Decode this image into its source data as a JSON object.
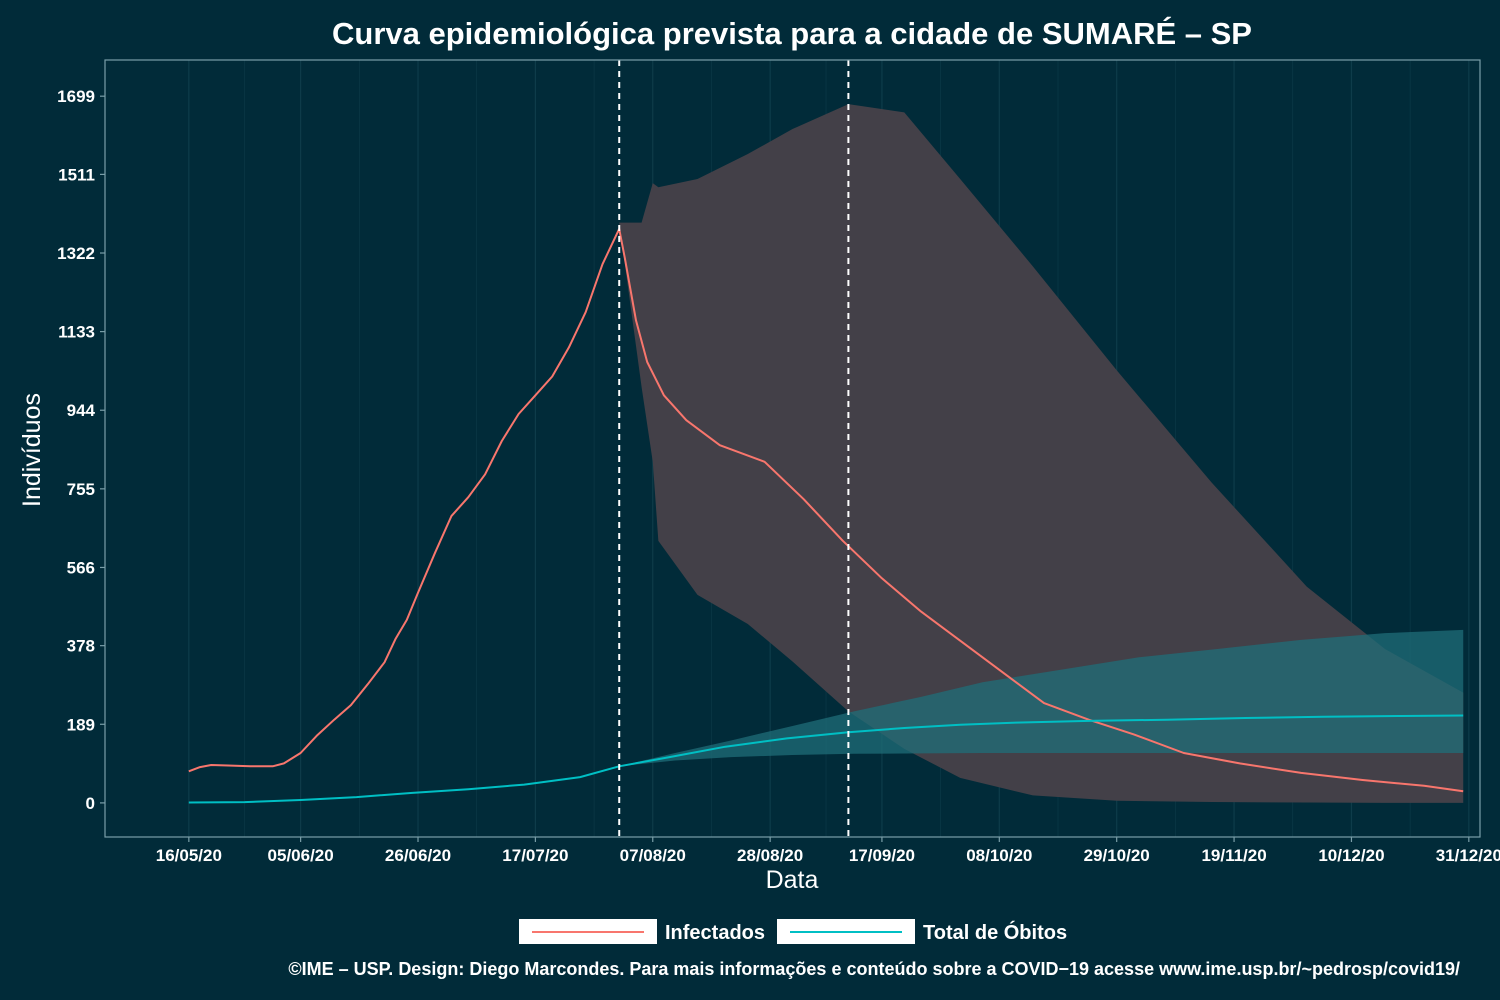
{
  "chart_data": {
    "type": "line",
    "title": "Curva epidemiológica prevista para a cidade de SUMARÉ – SP",
    "xlabel": "Data",
    "ylabel": "Indivíduos",
    "x_range": [
      "2020-05-01",
      "2021-01-02"
    ],
    "ylim": [
      -82,
      1786
    ],
    "y_ticks": [
      0,
      189,
      378,
      566,
      755,
      944,
      1133,
      1322,
      1511,
      1699
    ],
    "x_ticks": [
      {
        "date": "2020-05-16",
        "label": "16/05/20"
      },
      {
        "date": "2020-06-05",
        "label": "05/06/20"
      },
      {
        "date": "2020-06-26",
        "label": "26/06/20"
      },
      {
        "date": "2020-07-17",
        "label": "17/07/20"
      },
      {
        "date": "2020-08-07",
        "label": "07/08/20"
      },
      {
        "date": "2020-08-28",
        "label": "28/08/20"
      },
      {
        "date": "2020-09-17",
        "label": "17/09/20"
      },
      {
        "date": "2020-10-08",
        "label": "08/10/20"
      },
      {
        "date": "2020-10-29",
        "label": "29/10/20"
      },
      {
        "date": "2020-11-19",
        "label": "19/11/20"
      },
      {
        "date": "2020-12-10",
        "label": "10/12/20"
      },
      {
        "date": "2020-12-31",
        "label": "31/12/20"
      }
    ],
    "vlines": [
      "2020-08-01",
      "2020-09-11"
    ],
    "grid": true,
    "legend_position": "bottom",
    "series": [
      {
        "name": "Infectados",
        "color": "#f8766d",
        "points": [
          [
            "2020-05-16",
            76
          ],
          [
            "2020-05-18",
            86
          ],
          [
            "2020-05-20",
            91
          ],
          [
            "2020-05-23",
            90
          ],
          [
            "2020-05-27",
            88
          ],
          [
            "2020-05-31",
            88
          ],
          [
            "2020-06-02",
            95
          ],
          [
            "2020-06-05",
            120
          ],
          [
            "2020-06-08",
            163
          ],
          [
            "2020-06-11",
            200
          ],
          [
            "2020-06-14",
            235
          ],
          [
            "2020-06-17",
            285
          ],
          [
            "2020-06-20",
            338
          ],
          [
            "2020-06-22",
            395
          ],
          [
            "2020-06-24",
            440
          ],
          [
            "2020-06-26",
            505
          ],
          [
            "2020-06-29",
            600
          ],
          [
            "2020-07-02",
            690
          ],
          [
            "2020-07-05",
            735
          ],
          [
            "2020-07-08",
            790
          ],
          [
            "2020-07-11",
            870
          ],
          [
            "2020-07-14",
            935
          ],
          [
            "2020-07-17",
            980
          ],
          [
            "2020-07-20",
            1025
          ],
          [
            "2020-07-23",
            1095
          ],
          [
            "2020-07-26",
            1180
          ],
          [
            "2020-07-29",
            1295
          ],
          [
            "2020-08-01",
            1380
          ],
          [
            "2020-08-02",
            1310
          ],
          [
            "2020-08-04",
            1160
          ],
          [
            "2020-08-06",
            1060
          ],
          [
            "2020-08-09",
            980
          ],
          [
            "2020-08-13",
            920
          ],
          [
            "2020-08-19",
            860
          ],
          [
            "2020-08-27",
            820
          ],
          [
            "2020-09-03",
            730
          ],
          [
            "2020-09-10",
            630
          ],
          [
            "2020-09-17",
            540
          ],
          [
            "2020-09-24",
            460
          ],
          [
            "2020-10-01",
            390
          ],
          [
            "2020-10-08",
            320
          ],
          [
            "2020-10-16",
            240
          ],
          [
            "2020-10-24",
            200
          ],
          [
            "2020-11-01",
            165
          ],
          [
            "2020-11-10",
            120
          ],
          [
            "2020-11-20",
            95
          ],
          [
            "2020-12-01",
            72
          ],
          [
            "2020-12-12",
            55
          ],
          [
            "2020-12-23",
            41
          ],
          [
            "2020-12-30",
            28
          ]
        ],
        "band": [
          [
            "2020-08-01",
            1395,
            1395
          ],
          [
            "2020-08-05",
            1395,
            1000
          ],
          [
            "2020-08-07",
            1490,
            820
          ],
          [
            "2020-08-08",
            1480,
            630
          ],
          [
            "2020-08-15",
            1500,
            500
          ],
          [
            "2020-08-24",
            1560,
            430
          ],
          [
            "2020-09-01",
            1620,
            340
          ],
          [
            "2020-09-11",
            1680,
            220
          ],
          [
            "2020-09-21",
            1660,
            130
          ],
          [
            "2020-10-01",
            1500,
            60
          ],
          [
            "2020-10-14",
            1290,
            18
          ],
          [
            "2020-10-29",
            1040,
            5
          ],
          [
            "2020-11-15",
            770,
            2
          ],
          [
            "2020-12-02",
            520,
            1
          ],
          [
            "2020-12-16",
            370,
            0
          ],
          [
            "2020-12-30",
            265,
            0
          ]
        ]
      },
      {
        "name": "Total de Óbitos",
        "color": "#00bfc4",
        "points": [
          [
            "2020-05-16",
            1
          ],
          [
            "2020-05-26",
            2
          ],
          [
            "2020-06-05",
            7
          ],
          [
            "2020-06-15",
            14
          ],
          [
            "2020-06-25",
            24
          ],
          [
            "2020-07-05",
            33
          ],
          [
            "2020-07-15",
            44
          ],
          [
            "2020-07-25",
            62
          ],
          [
            "2020-08-01",
            88
          ],
          [
            "2020-08-10",
            110
          ],
          [
            "2020-08-20",
            135
          ],
          [
            "2020-08-31",
            155
          ],
          [
            "2020-09-11",
            170
          ],
          [
            "2020-09-21",
            180
          ],
          [
            "2020-10-01",
            188
          ],
          [
            "2020-10-11",
            193
          ],
          [
            "2020-10-24",
            197
          ],
          [
            "2020-11-07",
            200
          ],
          [
            "2020-11-21",
            204
          ],
          [
            "2020-12-05",
            207
          ],
          [
            "2020-12-19",
            209
          ],
          [
            "2020-12-30",
            210
          ]
        ],
        "band": [
          [
            "2020-08-01",
            88,
            88
          ],
          [
            "2020-08-11",
            120,
            102
          ],
          [
            "2020-08-21",
            150,
            110
          ],
          [
            "2020-09-01",
            185,
            115
          ],
          [
            "2020-09-12",
            220,
            118
          ],
          [
            "2020-09-24",
            255,
            119
          ],
          [
            "2020-10-05",
            290,
            120
          ],
          [
            "2020-10-19",
            320,
            120
          ],
          [
            "2020-11-02",
            350,
            120
          ],
          [
            "2020-11-16",
            370,
            120
          ],
          [
            "2020-12-01",
            392,
            120
          ],
          [
            "2020-12-16",
            408,
            120
          ],
          [
            "2020-12-30",
            416,
            120
          ]
        ]
      }
    ]
  },
  "caption": "©IME – USP. Design: Diego Marcondes. Para mais informações e conteúdo sobre a COVID−19 acesse www.ime.usp.br/~pedrosp/covid19/",
  "colors": {
    "background": "#012b39",
    "grid": "#0e3c4a",
    "frame": "#7a9ea8",
    "band_infectados": "#434048",
    "band_obitos": "#1f6e78"
  }
}
